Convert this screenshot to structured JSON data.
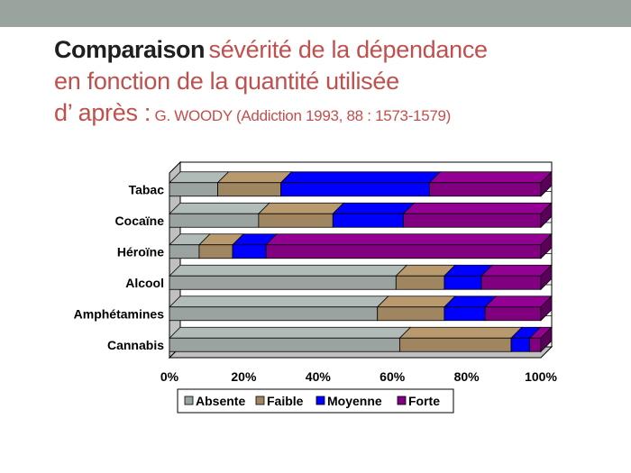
{
  "slide": {
    "title_bold": "Comparaison",
    "title_line1_rest": "sévérité de la dépendance",
    "title_line2": "en fonction de la quantité utilisée",
    "title_line3_main": "d’ après :",
    "title_line3_ref": "G. WOODY (Addiction 1993, 88 : 1573-1579)"
  },
  "chart_data": {
    "type": "bar",
    "orientation": "horizontal",
    "stacked": true,
    "percent_stacked": true,
    "categories": [
      "Tabac",
      "Cocaïne",
      "Héroïne",
      "Alcool",
      "Amphétamines",
      "Cannabis"
    ],
    "series": [
      {
        "name": "Absente",
        "color": "#9aa3a0",
        "values": [
          13,
          24,
          8,
          61,
          56,
          62
        ]
      },
      {
        "name": "Faible",
        "color": "#a08660",
        "values": [
          17,
          20,
          9,
          13,
          18,
          30
        ]
      },
      {
        "name": "Moyenne",
        "color": "#0000ff",
        "values": [
          40,
          19,
          9,
          10,
          11,
          5
        ]
      },
      {
        "name": "Forte",
        "color": "#800080",
        "values": [
          30,
          37,
          74,
          16,
          15,
          3
        ]
      }
    ],
    "x_ticks": [
      "0%",
      "20%",
      "40%",
      "60%",
      "80%",
      "100%"
    ],
    "xlim": [
      0,
      100
    ],
    "legend_position": "bottom",
    "three_d": true
  }
}
